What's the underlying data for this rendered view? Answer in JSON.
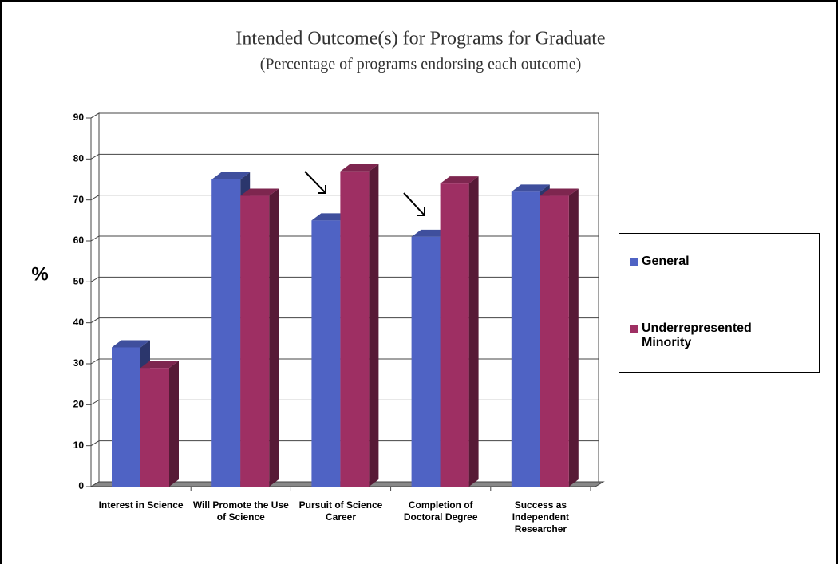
{
  "chart_data": {
    "type": "bar3d",
    "title": "Intended Outcome(s) for Programs for Graduate",
    "subtitle": "(Percentage of programs endorsing each outcome)",
    "y_label": "%",
    "categories": [
      "Interest in Science",
      "Will Promote the Use of Science",
      "Pursuit of Science Career",
      "Completion of Doctoral Degree",
      "Success as Independent Researcher"
    ],
    "series": [
      {
        "name": "General",
        "color": "#4f63c4",
        "values": [
          34,
          75,
          65,
          61,
          72
        ]
      },
      {
        "name": "Underrepresented Minority",
        "color": "#9e2f63",
        "values": [
          29,
          71,
          77,
          74,
          71
        ]
      }
    ],
    "ylim": [
      0,
      90
    ],
    "yticks": [
      0,
      10,
      20,
      30,
      40,
      50,
      60,
      70,
      80,
      90
    ],
    "grid": true,
    "legend": "right"
  }
}
